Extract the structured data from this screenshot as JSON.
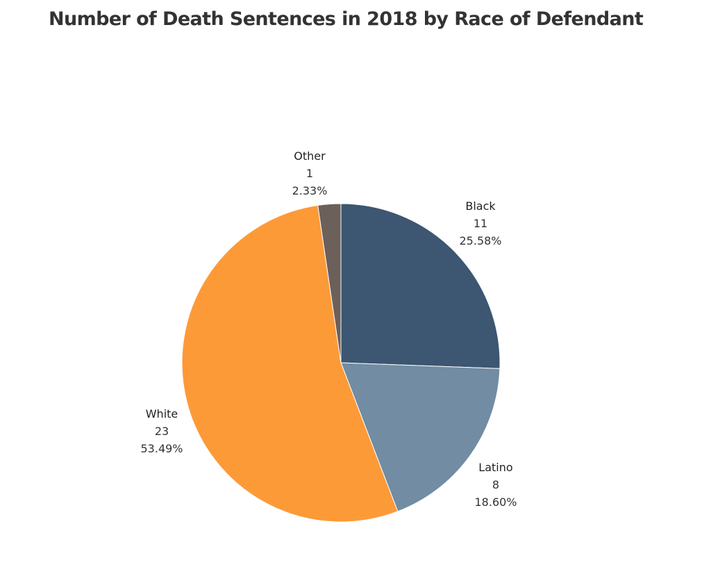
{
  "chart_data": {
    "type": "pie",
    "title": "Number of Death Sentences in 2018 by Race of Defendant",
    "slices": [
      {
        "name": "Black",
        "value": 11,
        "percent": "25.58%",
        "color": "#3d5671"
      },
      {
        "name": "Latino",
        "value": 8,
        "percent": "18.60%",
        "color": "#718ca3"
      },
      {
        "name": "White",
        "value": 23,
        "percent": "53.49%",
        "color": "#fd9a38"
      },
      {
        "name": "Other",
        "value": 1,
        "percent": "2.33%",
        "color": "#6b605a"
      }
    ],
    "start_angle_deg": 0,
    "direction": "clockwise",
    "legend": "none"
  }
}
